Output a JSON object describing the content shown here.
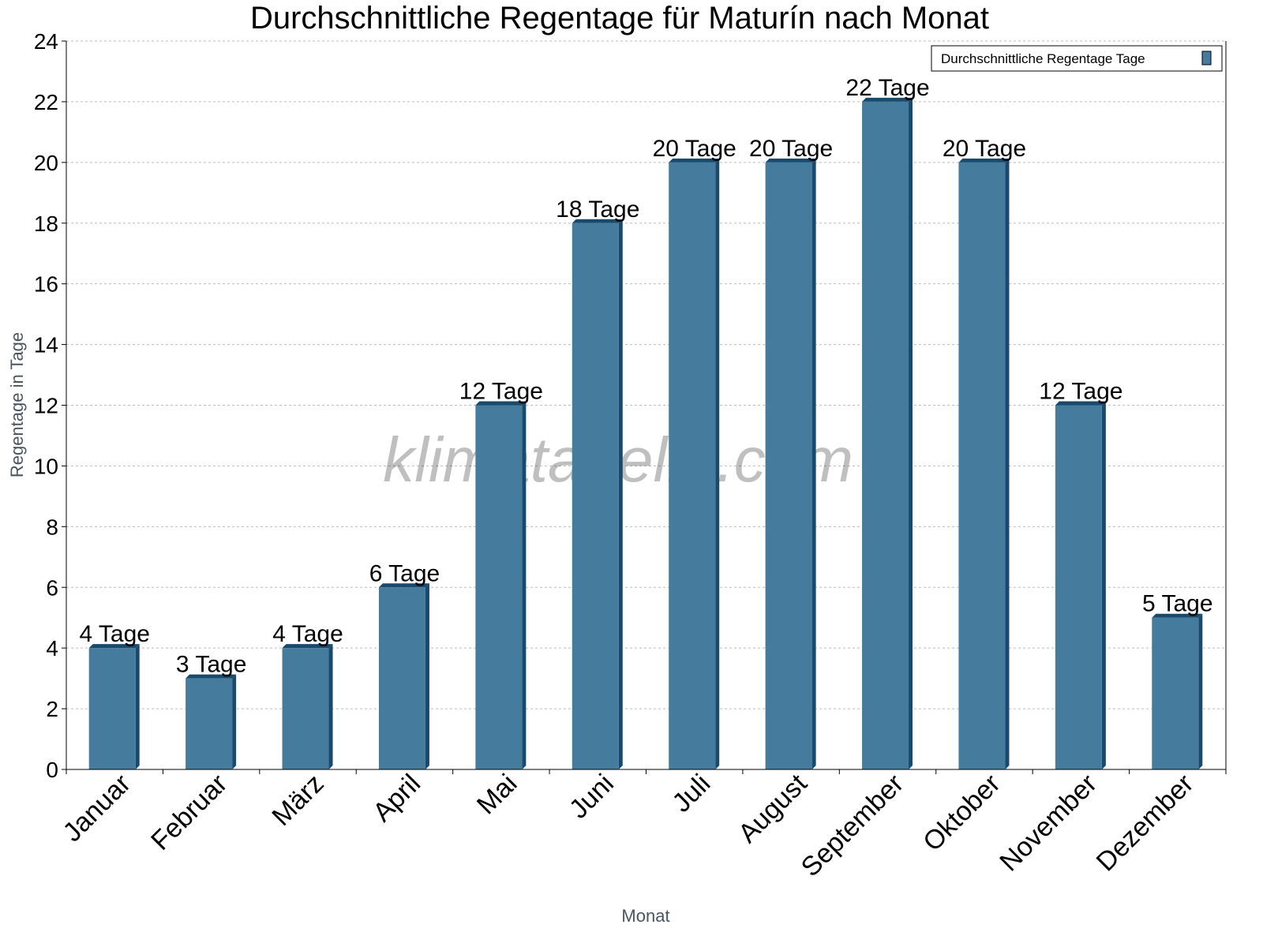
{
  "chart_data": {
    "type": "bar",
    "title": "Durchschnittliche Regentage für Maturín nach Monat",
    "xlabel": "Monat",
    "ylabel": "Regentage in Tage",
    "categories": [
      "Januar",
      "Februar",
      "März",
      "April",
      "Mai",
      "Juni",
      "Juli",
      "August",
      "September",
      "Oktober",
      "November",
      "Dezember"
    ],
    "series": [
      {
        "name": "Durchschnittliche Regentage Tage",
        "values": [
          4,
          3,
          4,
          6,
          12,
          18,
          20,
          20,
          22,
          20,
          12,
          5
        ],
        "color": "#457b9d",
        "side_color": "#1a4a6b"
      }
    ],
    "data_labels": [
      "4 Tage",
      "3 Tage",
      "4 Tage",
      "6 Tage",
      "12 Tage",
      "18 Tage",
      "20 Tage",
      "20 Tage",
      "22 Tage",
      "20 Tage",
      "12 Tage",
      "5 Tage"
    ],
    "yticks": [
      0,
      2,
      4,
      6,
      8,
      10,
      12,
      14,
      16,
      18,
      20,
      22,
      24
    ],
    "ylim": [
      0,
      24
    ],
    "grid": true,
    "legend_position": "top-right",
    "watermark": "klimatabelle.com"
  }
}
